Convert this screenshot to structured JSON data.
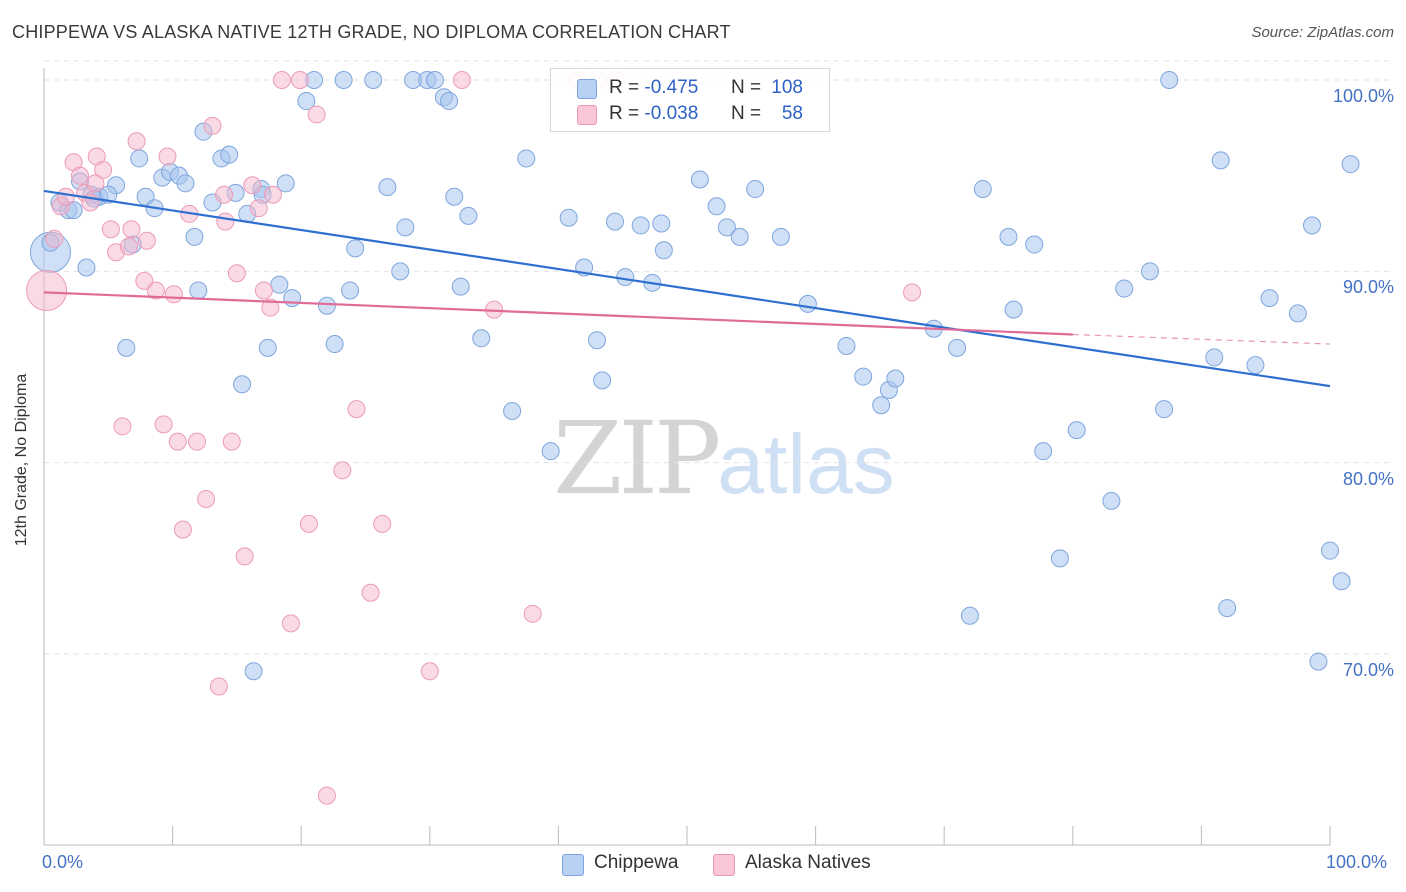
{
  "header": {
    "title": "CHIPPEWA VS ALASKA NATIVE 12TH GRADE, NO DIPLOMA CORRELATION CHART",
    "source": "Source: ZipAtlas.com"
  },
  "watermark": {
    "part1": "ZIP",
    "part2": "atlas"
  },
  "legend": {
    "rows": [
      {
        "r_label": "R =",
        "r_value": "-0.475",
        "n_label": "N =",
        "n_value": "108"
      },
      {
        "r_label": "R =",
        "r_value": "-0.038",
        "n_label": "N =",
        "n_value": "58"
      }
    ]
  },
  "bottom_legend": {
    "items": [
      "Chippewa",
      "Alaska Natives"
    ]
  },
  "chart_data": {
    "type": "scatter",
    "ylabel": "12th Grade, No Diploma",
    "xlabel": "",
    "xlim": [
      0,
      100
    ],
    "ylim": [
      60,
      102
    ],
    "x_tick_labels": [
      "0.0%",
      "100.0%"
    ],
    "y_ticks": [
      70,
      80,
      90,
      100
    ],
    "y_tick_labels": [
      "70.0%",
      "80.0%",
      "90.0%",
      "100.0%"
    ],
    "grid": true,
    "legend_placement": "top-center",
    "colors": {
      "Chippewa": "#a8c4ec",
      "Alaska Natives": "#f5b8cc",
      "Chippewa_line": "#2e6fd0",
      "Alaska Natives_line": "#e06b98"
    },
    "series": [
      {
        "name": "Chippewa",
        "trend": {
          "x": [
            0,
            100
          ],
          "y": [
            94.2,
            84.0
          ],
          "dash_from": null
        },
        "points": [
          [
            0.5,
            91.0
          ],
          [
            1.2,
            93.6
          ],
          [
            1.9,
            93.2
          ],
          [
            2.3,
            93.2
          ],
          [
            2.8,
            94.7
          ],
          [
            3.3,
            90.2
          ],
          [
            3.7,
            94.0
          ],
          [
            4.3,
            93.9
          ],
          [
            5.6,
            94.5
          ],
          [
            6.4,
            86.0
          ],
          [
            6.9,
            91.4
          ],
          [
            7.4,
            95.9
          ],
          [
            7.9,
            93.9
          ],
          [
            8.6,
            93.3
          ],
          [
            9.2,
            94.9
          ],
          [
            9.8,
            95.2
          ],
          [
            10.5,
            95.0
          ],
          [
            11.0,
            94.6
          ],
          [
            11.7,
            91.8
          ],
          [
            12.4,
            97.3
          ],
          [
            13.1,
            93.6
          ],
          [
            13.8,
            95.9
          ],
          [
            14.4,
            96.1
          ],
          [
            14.9,
            94.1
          ],
          [
            15.4,
            84.1
          ],
          [
            15.8,
            93.0
          ],
          [
            16.3,
            69.1
          ],
          [
            16.9,
            94.3
          ],
          [
            17.4,
            86.0
          ],
          [
            18.3,
            89.3
          ],
          [
            18.8,
            94.6
          ],
          [
            19.3,
            88.6
          ],
          [
            20.4,
            98.9
          ],
          [
            21.0,
            100
          ],
          [
            22.0,
            88.2
          ],
          [
            22.6,
            86.2
          ],
          [
            23.3,
            100
          ],
          [
            23.8,
            89.0
          ],
          [
            24.2,
            91.2
          ],
          [
            25.6,
            100
          ],
          [
            26.7,
            94.4
          ],
          [
            27.7,
            90.0
          ],
          [
            28.1,
            92.3
          ],
          [
            28.7,
            100
          ],
          [
            29.8,
            100
          ],
          [
            30.4,
            100
          ],
          [
            31.1,
            99.1
          ],
          [
            31.5,
            98.9
          ],
          [
            31.9,
            93.9
          ],
          [
            32.4,
            89.2
          ],
          [
            33.0,
            92.9
          ],
          [
            34.0,
            86.5
          ],
          [
            36.4,
            82.7
          ],
          [
            37.5,
            95.9
          ],
          [
            39.4,
            80.6
          ],
          [
            40.8,
            92.8
          ],
          [
            42.0,
            90.2
          ],
          [
            43.0,
            86.4
          ],
          [
            43.4,
            84.3
          ],
          [
            44.4,
            92.6
          ],
          [
            45.2,
            89.7
          ],
          [
            46.4,
            92.4
          ],
          [
            47.3,
            89.4
          ],
          [
            48.0,
            92.5
          ],
          [
            48.2,
            91.1
          ],
          [
            51.0,
            94.8
          ],
          [
            52.3,
            93.4
          ],
          [
            53.1,
            92.3
          ],
          [
            54.1,
            91.8
          ],
          [
            55.3,
            94.3
          ],
          [
            57.3,
            91.8
          ],
          [
            59.4,
            88.3
          ],
          [
            62.4,
            86.1
          ],
          [
            63.7,
            84.5
          ],
          [
            65.1,
            83.0
          ],
          [
            65.7,
            83.8
          ],
          [
            66.2,
            84.4
          ],
          [
            69.2,
            87.0
          ],
          [
            71.0,
            86.0
          ],
          [
            73.0,
            94.3
          ],
          [
            75.0,
            91.8
          ],
          [
            75.4,
            88.0
          ],
          [
            77.0,
            91.4
          ],
          [
            77.7,
            80.6
          ],
          [
            79.0,
            75.0
          ],
          [
            80.3,
            81.7
          ],
          [
            83.0,
            78.0
          ],
          [
            84.0,
            89.1
          ],
          [
            86.0,
            90.0
          ],
          [
            87.1,
            82.8
          ],
          [
            87.5,
            100
          ],
          [
            91.0,
            85.5
          ],
          [
            91.5,
            95.8
          ],
          [
            92.0,
            72.4
          ],
          [
            94.2,
            85.1
          ],
          [
            95.3,
            88.6
          ],
          [
            97.5,
            87.8
          ],
          [
            98.6,
            92.4
          ],
          [
            99.1,
            69.6
          ],
          [
            100.0,
            75.4
          ],
          [
            100.9,
            73.8
          ],
          [
            101.6,
            95.6
          ],
          [
            0.5,
            91.5
          ],
          [
            3.9,
            93.8
          ],
          [
            5.0,
            94.0
          ],
          [
            12.0,
            89.0
          ],
          [
            17.0,
            94.0
          ],
          [
            72.0,
            72.0
          ]
        ]
      },
      {
        "name": "Alaska Natives",
        "trend": {
          "x": [
            0,
            80,
            100
          ],
          "y": [
            88.9,
            86.7,
            86.2
          ],
          "dash_from": 80
        },
        "points": [
          [
            0.2,
            89.0
          ],
          [
            0.8,
            91.7
          ],
          [
            1.3,
            93.4
          ],
          [
            1.7,
            93.9
          ],
          [
            2.3,
            95.7
          ],
          [
            2.8,
            95.0
          ],
          [
            3.2,
            94.1
          ],
          [
            3.6,
            93.6
          ],
          [
            4.1,
            96.0
          ],
          [
            4.6,
            95.3
          ],
          [
            5.2,
            92.2
          ],
          [
            5.6,
            91.0
          ],
          [
            6.1,
            81.9
          ],
          [
            6.6,
            91.3
          ],
          [
            7.2,
            96.8
          ],
          [
            7.8,
            89.5
          ],
          [
            8.0,
            91.6
          ],
          [
            8.7,
            89.0
          ],
          [
            9.3,
            82.0
          ],
          [
            9.6,
            96.0
          ],
          [
            10.1,
            88.8
          ],
          [
            10.4,
            81.1
          ],
          [
            10.8,
            76.5
          ],
          [
            11.3,
            93.0
          ],
          [
            11.9,
            81.1
          ],
          [
            12.6,
            78.1
          ],
          [
            13.1,
            97.6
          ],
          [
            13.6,
            68.3
          ],
          [
            14.1,
            92.6
          ],
          [
            14.6,
            81.1
          ],
          [
            15.0,
            89.9
          ],
          [
            15.6,
            75.1
          ],
          [
            16.2,
            94.5
          ],
          [
            16.7,
            93.3
          ],
          [
            17.1,
            89.0
          ],
          [
            17.6,
            88.1
          ],
          [
            18.5,
            100
          ],
          [
            19.2,
            71.6
          ],
          [
            19.9,
            100
          ],
          [
            20.6,
            76.8
          ],
          [
            21.2,
            98.2
          ],
          [
            22.0,
            62.6
          ],
          [
            23.2,
            79.6
          ],
          [
            24.3,
            82.8
          ],
          [
            25.4,
            73.2
          ],
          [
            26.3,
            76.8
          ],
          [
            30.0,
            69.1
          ],
          [
            32.5,
            100
          ],
          [
            35.0,
            88.0
          ],
          [
            38.0,
            72.1
          ],
          [
            41.5,
            100
          ],
          [
            44.5,
            100
          ],
          [
            67.5,
            88.9
          ],
          [
            4.0,
            94.6
          ],
          [
            6.8,
            92.2
          ],
          [
            14.0,
            94.0
          ],
          [
            17.8,
            94.0
          ],
          [
            43.0,
            100
          ]
        ]
      }
    ]
  }
}
